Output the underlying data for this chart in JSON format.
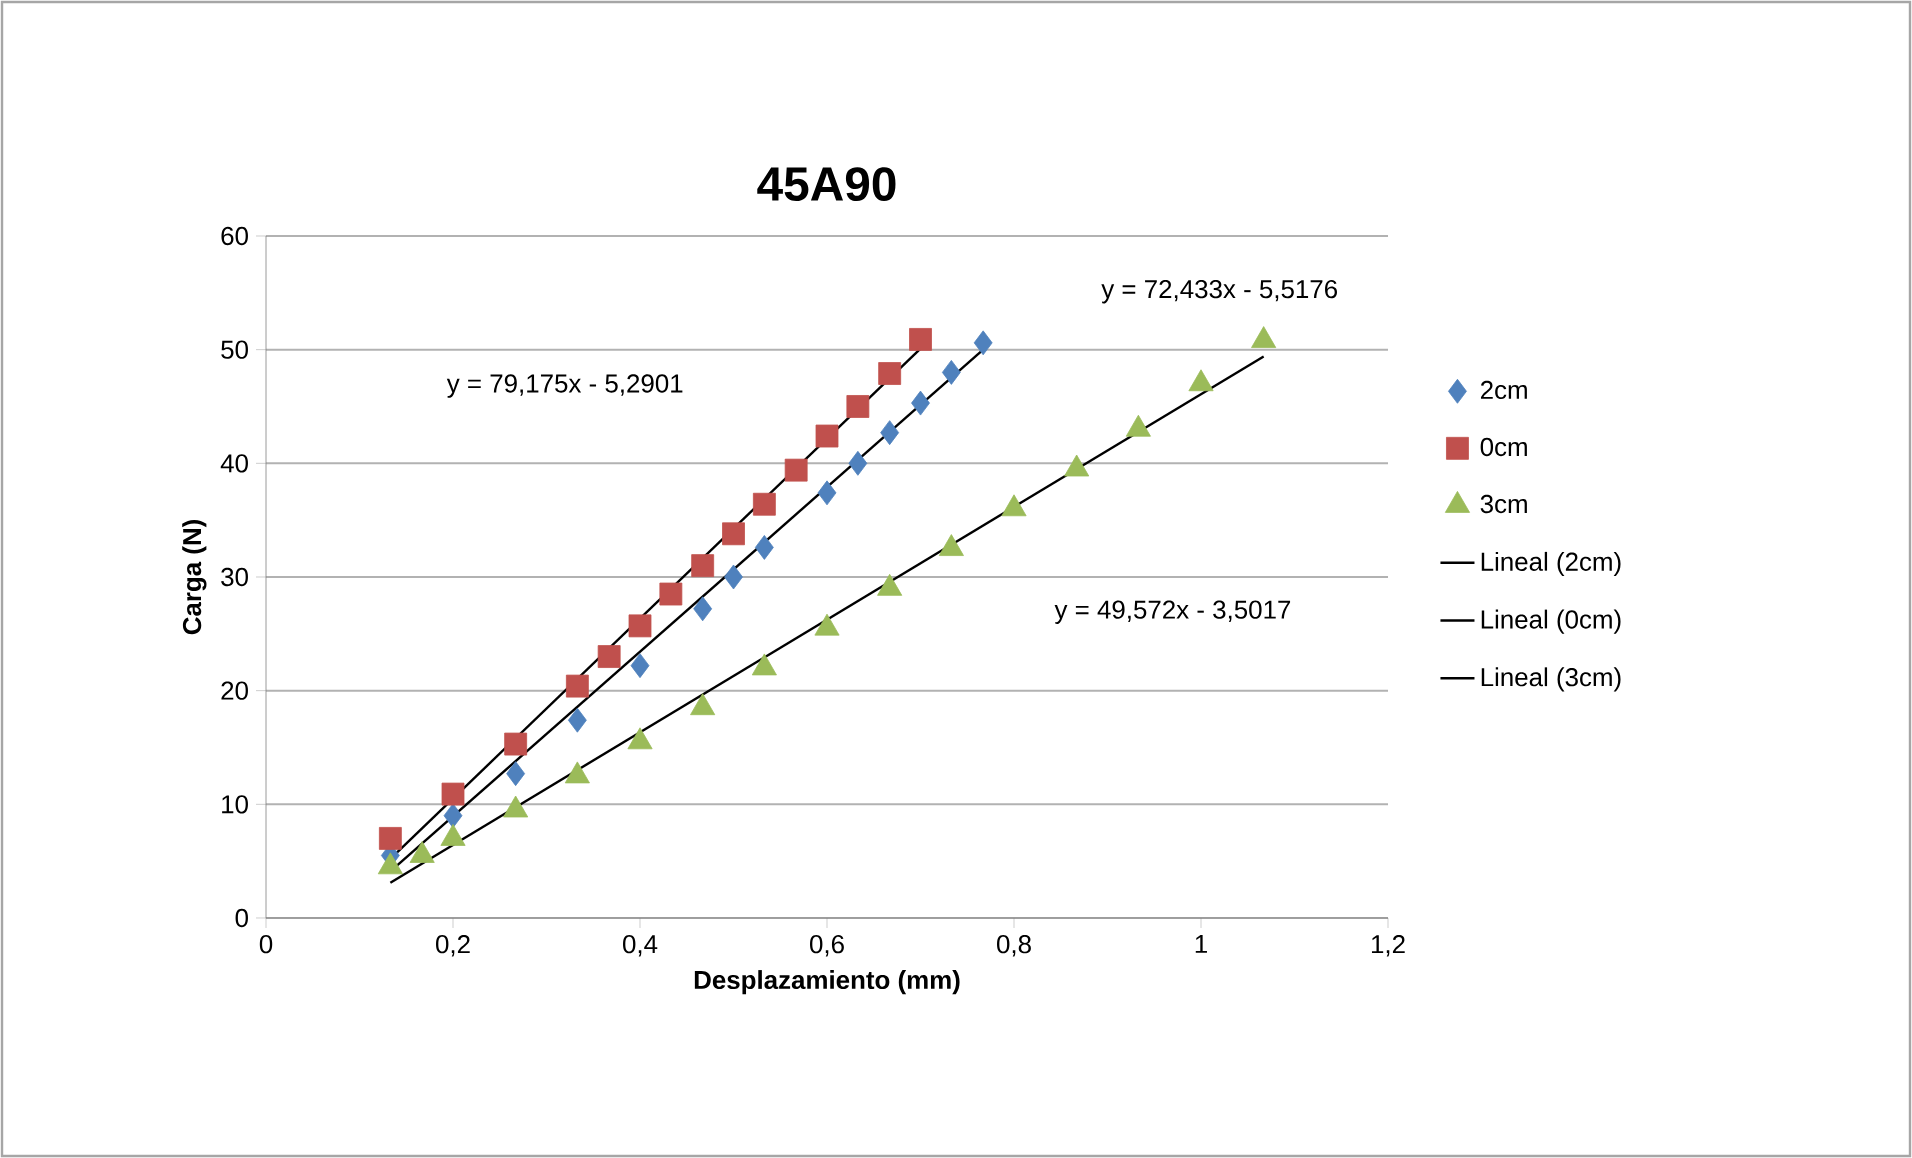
{
  "chart_data": {
    "type": "scatter",
    "title": "45A90",
    "xlabel": "Desplazamiento (mm)",
    "ylabel": "Carga (N)",
    "xlim": [
      0,
      1.2
    ],
    "ylim": [
      0,
      60
    ],
    "xticks": [
      {
        "value": 0,
        "label": "0"
      },
      {
        "value": 0.2,
        "label": "0,2"
      },
      {
        "value": 0.4,
        "label": "0,4"
      },
      {
        "value": 0.6,
        "label": "0,6"
      },
      {
        "value": 0.8,
        "label": "0,8"
      },
      {
        "value": 1,
        "label": "1"
      },
      {
        "value": 1.2,
        "label": "1,2"
      }
    ],
    "yticks": [
      0,
      10,
      20,
      30,
      40,
      50,
      60
    ],
    "grid": "y",
    "legend": "right",
    "series": [
      {
        "name": "2cm",
        "marker": "diamond",
        "color": "#4f81bd",
        "x": [
          0.133,
          0.2,
          0.267,
          0.333,
          0.4,
          0.467,
          0.5,
          0.533,
          0.6,
          0.633,
          0.667,
          0.7,
          0.733,
          0.767
        ],
        "values": [
          5.5,
          9,
          12.7,
          17.4,
          22.2,
          27.2,
          30,
          32.6,
          37.4,
          40,
          42.7,
          45.3,
          48,
          50.6
        ]
      },
      {
        "name": "0cm",
        "marker": "square",
        "color": "#c0504d",
        "x": [
          0.133,
          0.2,
          0.267,
          0.333,
          0.367,
          0.4,
          0.433,
          0.467,
          0.5,
          0.533,
          0.567,
          0.6,
          0.633,
          0.667,
          0.7
        ],
        "values": [
          7,
          10.9,
          15.3,
          20.4,
          23,
          25.7,
          28.5,
          31,
          33.8,
          36.4,
          39.4,
          42.4,
          45,
          47.9,
          50.9
        ]
      },
      {
        "name": "3cm",
        "marker": "triangle",
        "color": "#9bbb59",
        "x": [
          0.133,
          0.167,
          0.2,
          0.267,
          0.333,
          0.4,
          0.467,
          0.533,
          0.6,
          0.667,
          0.733,
          0.8,
          0.867,
          0.933,
          1.0,
          1.067
        ],
        "values": [
          4.5,
          5.5,
          7,
          9.5,
          12.5,
          15.5,
          18.5,
          22,
          25.5,
          29,
          32.5,
          36,
          39.5,
          43,
          47,
          50.8
        ]
      },
      {
        "name": "Lineal (2cm)",
        "type": "line",
        "marker": "none",
        "color": "#000000",
        "x": [
          0.133,
          0.767
        ],
        "values": [
          4.1,
          50.0
        ]
      },
      {
        "name": "Lineal (0cm)",
        "type": "line",
        "marker": "none",
        "color": "#000000",
        "x": [
          0.133,
          0.7
        ],
        "values": [
          5.2,
          50.1
        ]
      },
      {
        "name": "Lineal (3cm)",
        "type": "line",
        "marker": "none",
        "color": "#000000",
        "x": [
          0.133,
          1.067
        ],
        "values": [
          3.1,
          49.4
        ]
      }
    ],
    "annotations": [
      "y = 72,433x - 5,5176",
      "y = 79,175x - 5,2901",
      "y = 49,572x - 3,5017"
    ]
  }
}
